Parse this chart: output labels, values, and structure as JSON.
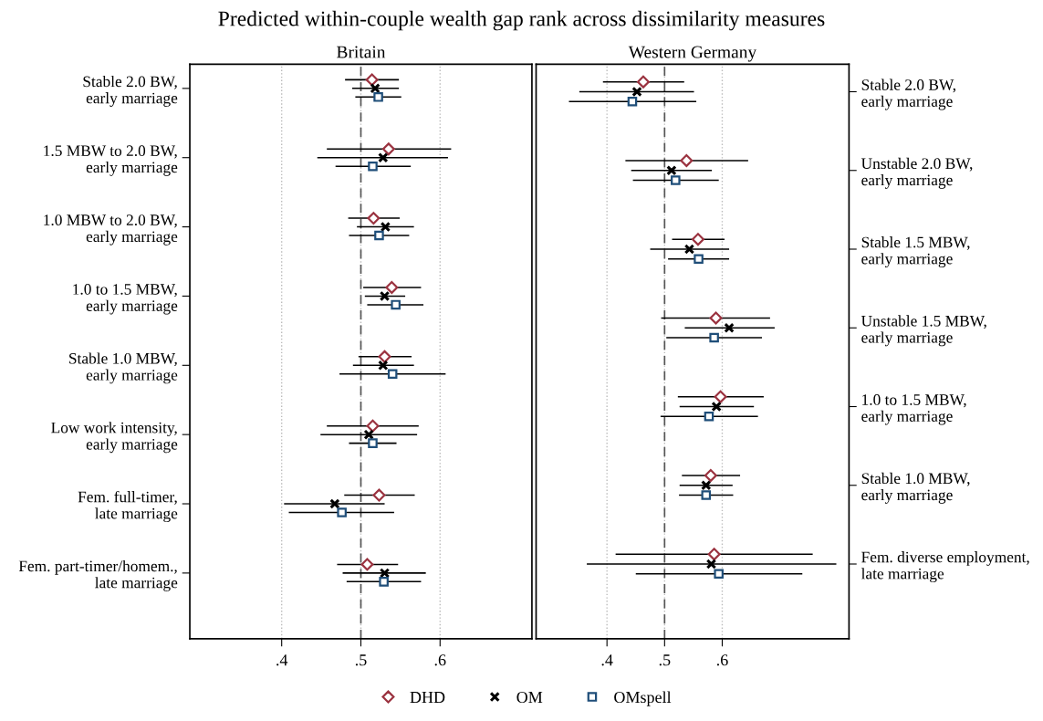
{
  "chart_data": [
    {
      "type": "scatter",
      "title": "Predicted within-couple wealth gap rank across dissimilarity measures",
      "subtitle": "Britain",
      "orientation": "horizontal",
      "categories": [
        "Stable 2.0 BW,\nearly marriage",
        "1.5 MBW to 2.0 BW,\nearly marriage",
        "1.0 MBW to 2.0 BW,\nearly marriage",
        "1.0 to 1.5 MBW,\nearly marriage",
        "Stable 1.0 MBW,\nearly marriage",
        "Low work intensity,\nearly marriage",
        "Fem. full-timer,\nlate marriage",
        "Fem. part-timer/homem.,\nlate marriage"
      ],
      "series": [
        {
          "name": "DHD",
          "color": "#9b3340",
          "marker": "diamond",
          "values": [
            0.514,
            0.535,
            0.516,
            0.539,
            0.53,
            0.515,
            0.523,
            0.508
          ],
          "errors": [
            [
              0.48,
              0.548
            ],
            [
              0.457,
              0.614
            ],
            [
              0.484,
              0.549
            ],
            [
              0.503,
              0.576
            ],
            [
              0.497,
              0.564
            ],
            [
              0.457,
              0.573
            ],
            [
              0.479,
              0.568
            ],
            [
              0.47,
              0.547
            ]
          ]
        },
        {
          "name": "OM",
          "color": "#000000",
          "marker": "cross",
          "values": [
            0.518,
            0.528,
            0.531,
            0.53,
            0.528,
            0.51,
            0.467,
            0.53
          ],
          "errors": [
            [
              0.489,
              0.548
            ],
            [
              0.445,
              0.61
            ],
            [
              0.495,
              0.567
            ],
            [
              0.505,
              0.556
            ],
            [
              0.49,
              0.567
            ],
            [
              0.449,
              0.571
            ],
            [
              0.403,
              0.53
            ],
            [
              0.477,
              0.582
            ]
          ]
        },
        {
          "name": "OMspell",
          "color": "#1f4e79",
          "marker": "square",
          "values": [
            0.522,
            0.515,
            0.523,
            0.544,
            0.54,
            0.515,
            0.476,
            0.529
          ],
          "errors": [
            [
              0.493,
              0.551
            ],
            [
              0.468,
              0.563
            ],
            [
              0.485,
              0.561
            ],
            [
              0.508,
              0.579
            ],
            [
              0.473,
              0.607
            ],
            [
              0.485,
              0.545
            ],
            [
              0.409,
              0.542
            ],
            [
              0.482,
              0.576
            ]
          ]
        }
      ],
      "xlim": [
        0.284,
        0.716
      ],
      "xticks": [
        {
          "value": 0.4,
          "label": ".4"
        },
        {
          "value": 0.5,
          "label": ".5"
        },
        {
          "value": 0.6,
          "label": ".6"
        }
      ],
      "ref_lines": [
        {
          "axis": "x",
          "value": 0.5,
          "color": "#555555",
          "line_style": "dashed"
        }
      ],
      "grid": "x",
      "legend": "bottom"
    },
    {
      "type": "scatter",
      "title": "Western Germany",
      "orientation": "horizontal",
      "categories": [
        "Stable 2.0 BW,\nearly marriage",
        "Unstable 2.0 BW,\nearly marriage",
        "Stable 1.5 MBW,\nearly marriage",
        "Unstable 1.5 MBW,\nearly marriage",
        "1.0 to 1.5 MBW,\nearly marriage",
        "Stable 1.0 MBW,\nearly marriage",
        "Fem. diverse employment,\nlate marriage"
      ],
      "series": [
        {
          "color": "#9b3340",
          "marker": "diamond",
          "values": [
            0.463,
            0.538,
            0.558,
            0.589,
            0.597,
            0.58,
            0.586
          ],
          "errors": [
            [
              0.393,
              0.534
            ],
            [
              0.432,
              0.645
            ],
            [
              0.513,
              0.604
            ],
            [
              0.494,
              0.683
            ],
            [
              0.523,
              0.672
            ],
            [
              0.53,
              0.631
            ],
            [
              0.415,
              0.757
            ]
          ]
        },
        {
          "color": "#000000",
          "marker": "cross",
          "values": [
            0.452,
            0.512,
            0.543,
            0.612,
            0.59,
            0.572,
            0.581
          ],
          "errors": [
            [
              0.352,
              0.551
            ],
            [
              0.442,
              0.582
            ],
            [
              0.475,
              0.612
            ],
            [
              0.535,
              0.691
            ],
            [
              0.526,
              0.655
            ],
            [
              0.526,
              0.618
            ],
            [
              0.365,
              0.798
            ]
          ]
        },
        {
          "color": "#1f4e79",
          "marker": "square",
          "values": [
            0.444,
            0.519,
            0.559,
            0.586,
            0.577,
            0.572,
            0.594
          ],
          "errors": [
            [
              0.334,
              0.555
            ],
            [
              0.445,
              0.594
            ],
            [
              0.506,
              0.612
            ],
            [
              0.503,
              0.669
            ],
            [
              0.493,
              0.662
            ],
            [
              0.525,
              0.619
            ],
            [
              0.45,
              0.739
            ]
          ]
        }
      ],
      "xlim": [
        0.277,
        0.82
      ],
      "xticks": [
        {
          "value": 0.4,
          "label": ".4"
        },
        {
          "value": 0.5,
          "label": ".5"
        },
        {
          "value": 0.6,
          "label": ".6"
        }
      ],
      "ref_lines": [
        {
          "axis": "x",
          "value": 0.5,
          "color": "#555555",
          "line_style": "dashed"
        }
      ],
      "grid": "x",
      "legend": false
    }
  ]
}
